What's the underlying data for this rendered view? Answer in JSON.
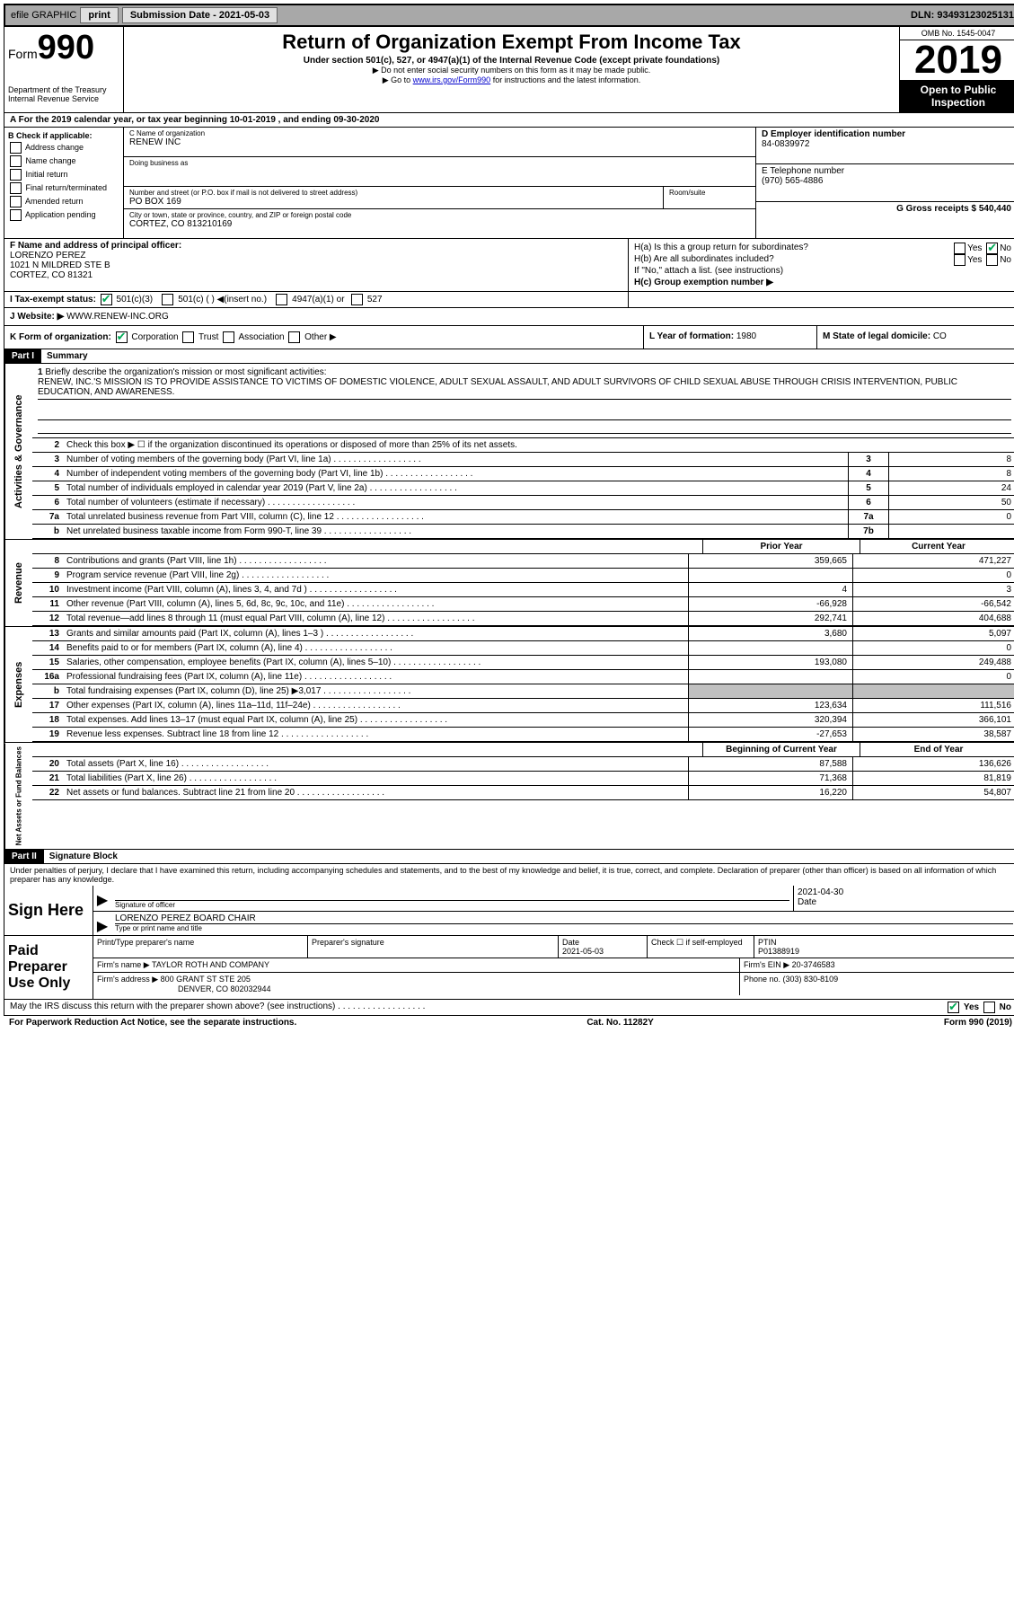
{
  "topbar": {
    "efile": "efile GRAPHIC",
    "print": "print",
    "sub_label": "Submission Date - 2021-05-03",
    "dln": "DLN: 93493123025131"
  },
  "header": {
    "form_label": "Form",
    "form_num": "990",
    "dept": "Department of the Treasury",
    "irs": "Internal Revenue Service",
    "title": "Return of Organization Exempt From Income Tax",
    "sub1": "Under section 501(c), 527, or 4947(a)(1) of the Internal Revenue Code (except private foundations)",
    "sub2": "▶ Do not enter social security numbers on this form as it may be made public.",
    "sub3_pre": "▶ Go to ",
    "sub3_link": "www.irs.gov/Form990",
    "sub3_post": " for instructions and the latest information.",
    "omb": "OMB No. 1545-0047",
    "year": "2019",
    "inspection": "Open to Public Inspection"
  },
  "line_a": "A For the 2019 calendar year, or tax year beginning 10-01-2019     , and ending 09-30-2020",
  "col_b": {
    "header": "B Check if applicable:",
    "i1": "Address change",
    "i2": "Name change",
    "i3": "Initial return",
    "i4": "Final return/terminated",
    "i5": "Amended return",
    "i6": "Application pending"
  },
  "col_c": {
    "name_label": "C Name of organization",
    "name": "RENEW INC",
    "dba_label": "Doing business as",
    "dba": "",
    "addr_label": "Number and street (or P.O. box if mail is not delivered to street address)",
    "addr": "PO BOX 169",
    "room_label": "Room/suite",
    "room": "",
    "city_label": "City or town, state or province, country, and ZIP or foreign postal code",
    "city": "CORTEZ, CO  813210169"
  },
  "col_de": {
    "d_label": "D Employer identification number",
    "d_val": "84-0839972",
    "e_label": "E Telephone number",
    "e_val": "(970) 565-4886",
    "g_label": "G Gross receipts $ ",
    "g_val": "540,440"
  },
  "f": {
    "label": "F  Name and address of principal officer:",
    "name": "LORENZO PEREZ",
    "addr1": "1021 N MILDRED STE B",
    "addr2": "CORTEZ, CO  81321"
  },
  "h": {
    "ha": "H(a)  Is this a group return for subordinates?",
    "hb": "H(b)  Are all subordinates included?",
    "hb_note": "If \"No,\" attach a list. (see instructions)",
    "hc": "H(c)  Group exemption number ▶",
    "yes": "Yes",
    "no": "No"
  },
  "i": {
    "label": "I  Tax-exempt status:",
    "o1": "501(c)(3)",
    "o2": "501(c) (   ) ◀(insert no.)",
    "o3": "4947(a)(1) or",
    "o4": "527"
  },
  "j": {
    "label": "J  Website: ▶ ",
    "val": "WWW.RENEW-INC.ORG"
  },
  "k": {
    "label": "K Form of organization:",
    "o1": "Corporation",
    "o2": "Trust",
    "o3": "Association",
    "o4": "Other ▶"
  },
  "l": {
    "label": "L Year of formation: ",
    "val": "1980"
  },
  "m": {
    "label": "M State of legal domicile: ",
    "val": "CO"
  },
  "parts": {
    "p1": "Part I",
    "p1_label": "Summary",
    "p2": "Part II",
    "p2_label": "Signature Block"
  },
  "summary": {
    "l1": "Briefly describe the organization's mission or most significant activities:",
    "mission": "RENEW, INC.'S MISSION IS TO PROVIDE ASSISTANCE TO VICTIMS OF DOMESTIC VIOLENCE, ADULT SEXUAL ASSAULT, AND ADULT SURVIVORS OF CHILD SEXUAL ABUSE THROUGH CRISIS INTERVENTION, PUBLIC EDUCATION, AND AWARENESS.",
    "l2": "Check this box ▶ ☐  if the organization discontinued its operations or disposed of more than 25% of its net assets.",
    "l3": "Number of voting members of the governing body (Part VI, line 1a)",
    "l3v": "8",
    "l4": "Number of independent voting members of the governing body (Part VI, line 1b)",
    "l4v": "8",
    "l5": "Total number of individuals employed in calendar year 2019 (Part V, line 2a)",
    "l5v": "24",
    "l6": "Total number of volunteers (estimate if necessary)",
    "l6v": "50",
    "l7a": "Total unrelated business revenue from Part VIII, column (C), line 12",
    "l7av": "0",
    "l7b": "Net unrelated business taxable income from Form 990-T, line 39",
    "l7bv": ""
  },
  "fin": {
    "py_label": "Prior Year",
    "cy_label": "Current Year",
    "boc_label": "Beginning of Current Year",
    "eoy_label": "End of Year",
    "rows": [
      {
        "n": "8",
        "d": "Contributions and grants (Part VIII, line 1h)",
        "py": "359,665",
        "cy": "471,227"
      },
      {
        "n": "9",
        "d": "Program service revenue (Part VIII, line 2g)",
        "py": "",
        "cy": "0"
      },
      {
        "n": "10",
        "d": "Investment income (Part VIII, column (A), lines 3, 4, and 7d )",
        "py": "4",
        "cy": "3"
      },
      {
        "n": "11",
        "d": "Other revenue (Part VIII, column (A), lines 5, 6d, 8c, 9c, 10c, and 11e)",
        "py": "-66,928",
        "cy": "-66,542"
      },
      {
        "n": "12",
        "d": "Total revenue—add lines 8 through 11 (must equal Part VIII, column (A), line 12)",
        "py": "292,741",
        "cy": "404,688"
      },
      {
        "n": "13",
        "d": "Grants and similar amounts paid (Part IX, column (A), lines 1–3 )",
        "py": "3,680",
        "cy": "5,097"
      },
      {
        "n": "14",
        "d": "Benefits paid to or for members (Part IX, column (A), line 4)",
        "py": "",
        "cy": "0"
      },
      {
        "n": "15",
        "d": "Salaries, other compensation, employee benefits (Part IX, column (A), lines 5–10)",
        "py": "193,080",
        "cy": "249,488"
      },
      {
        "n": "16a",
        "d": "Professional fundraising fees (Part IX, column (A), line 11e)",
        "py": "",
        "cy": "0"
      },
      {
        "n": "b",
        "d": "Total fundraising expenses (Part IX, column (D), line 25) ▶3,017",
        "py": "shaded",
        "cy": "shaded"
      },
      {
        "n": "17",
        "d": "Other expenses (Part IX, column (A), lines 11a–11d, 11f–24e)",
        "py": "123,634",
        "cy": "111,516"
      },
      {
        "n": "18",
        "d": "Total expenses. Add lines 13–17 (must equal Part IX, column (A), line 25)",
        "py": "320,394",
        "cy": "366,101"
      },
      {
        "n": "19",
        "d": "Revenue less expenses. Subtract line 18 from line 12",
        "py": "-27,653",
        "cy": "38,587"
      }
    ],
    "net_rows": [
      {
        "n": "20",
        "d": "Total assets (Part X, line 16)",
        "py": "87,588",
        "cy": "136,626"
      },
      {
        "n": "21",
        "d": "Total liabilities (Part X, line 26)",
        "py": "71,368",
        "cy": "81,819"
      },
      {
        "n": "22",
        "d": "Net assets or fund balances. Subtract line 21 from line 20",
        "py": "16,220",
        "cy": "54,807"
      }
    ]
  },
  "sides": {
    "ag": "Activities & Governance",
    "rev": "Revenue",
    "exp": "Expenses",
    "na": "Net Assets or Fund Balances"
  },
  "perjury": "Under penalties of perjury, I declare that I have examined this return, including accompanying schedules and statements, and to the best of my knowledge and belief, it is true, correct, and complete. Declaration of preparer (other than officer) is based on all information of which preparer has any knowledge.",
  "sign": {
    "here": "Sign Here",
    "sig_of_officer": "Signature of officer",
    "date_label": "Date",
    "date": "2021-04-30",
    "name": "LORENZO PEREZ  BOARD CHAIR",
    "type_label": "Type or print name and title"
  },
  "paid": {
    "label": "Paid Preparer Use Only",
    "pname_label": "Print/Type preparer's name",
    "psig_label": "Preparer's signature",
    "pdate_label": "Date",
    "pdate": "2021-05-03",
    "check_label": "Check ☐ if self-employed",
    "ptin_label": "PTIN",
    "ptin": "P01388919",
    "firm_label": "Firm's name    ▶ ",
    "firm": "TAYLOR ROTH AND COMPANY",
    "ein_label": "Firm's EIN ▶ ",
    "ein": "20-3746583",
    "addr_label": "Firm's address ▶ ",
    "addr1": "800 GRANT ST STE 205",
    "addr2": "DENVER, CO  802032944",
    "phone_label": "Phone no. ",
    "phone": "(303) 830-8109"
  },
  "discuss": "May the IRS discuss this return with the preparer shown above? (see instructions)",
  "footer": {
    "pra": "For Paperwork Reduction Act Notice, see the separate instructions.",
    "cat": "Cat. No. 11282Y",
    "form": "Form 990 (2019)"
  }
}
